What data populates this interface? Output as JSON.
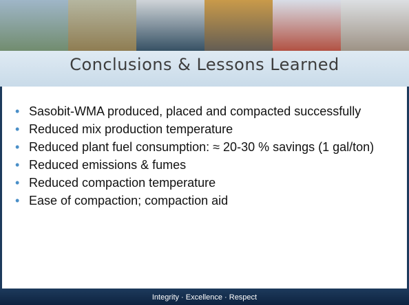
{
  "header": {
    "title": "Conclusions & Lessons Learned"
  },
  "bullets": [
    "Sasobit-WMA produced, placed and compacted successfully",
    "Reduced mix production temperature",
    "Reduced plant fuel consumption: ≈ 20-30 % savings (1 gal/ton)",
    "Reduced emissions & fumes",
    "Reduced compaction temperature",
    "Ease of compaction; compaction aid"
  ],
  "footer": {
    "text": "Integrity · Excellence · Respect"
  }
}
